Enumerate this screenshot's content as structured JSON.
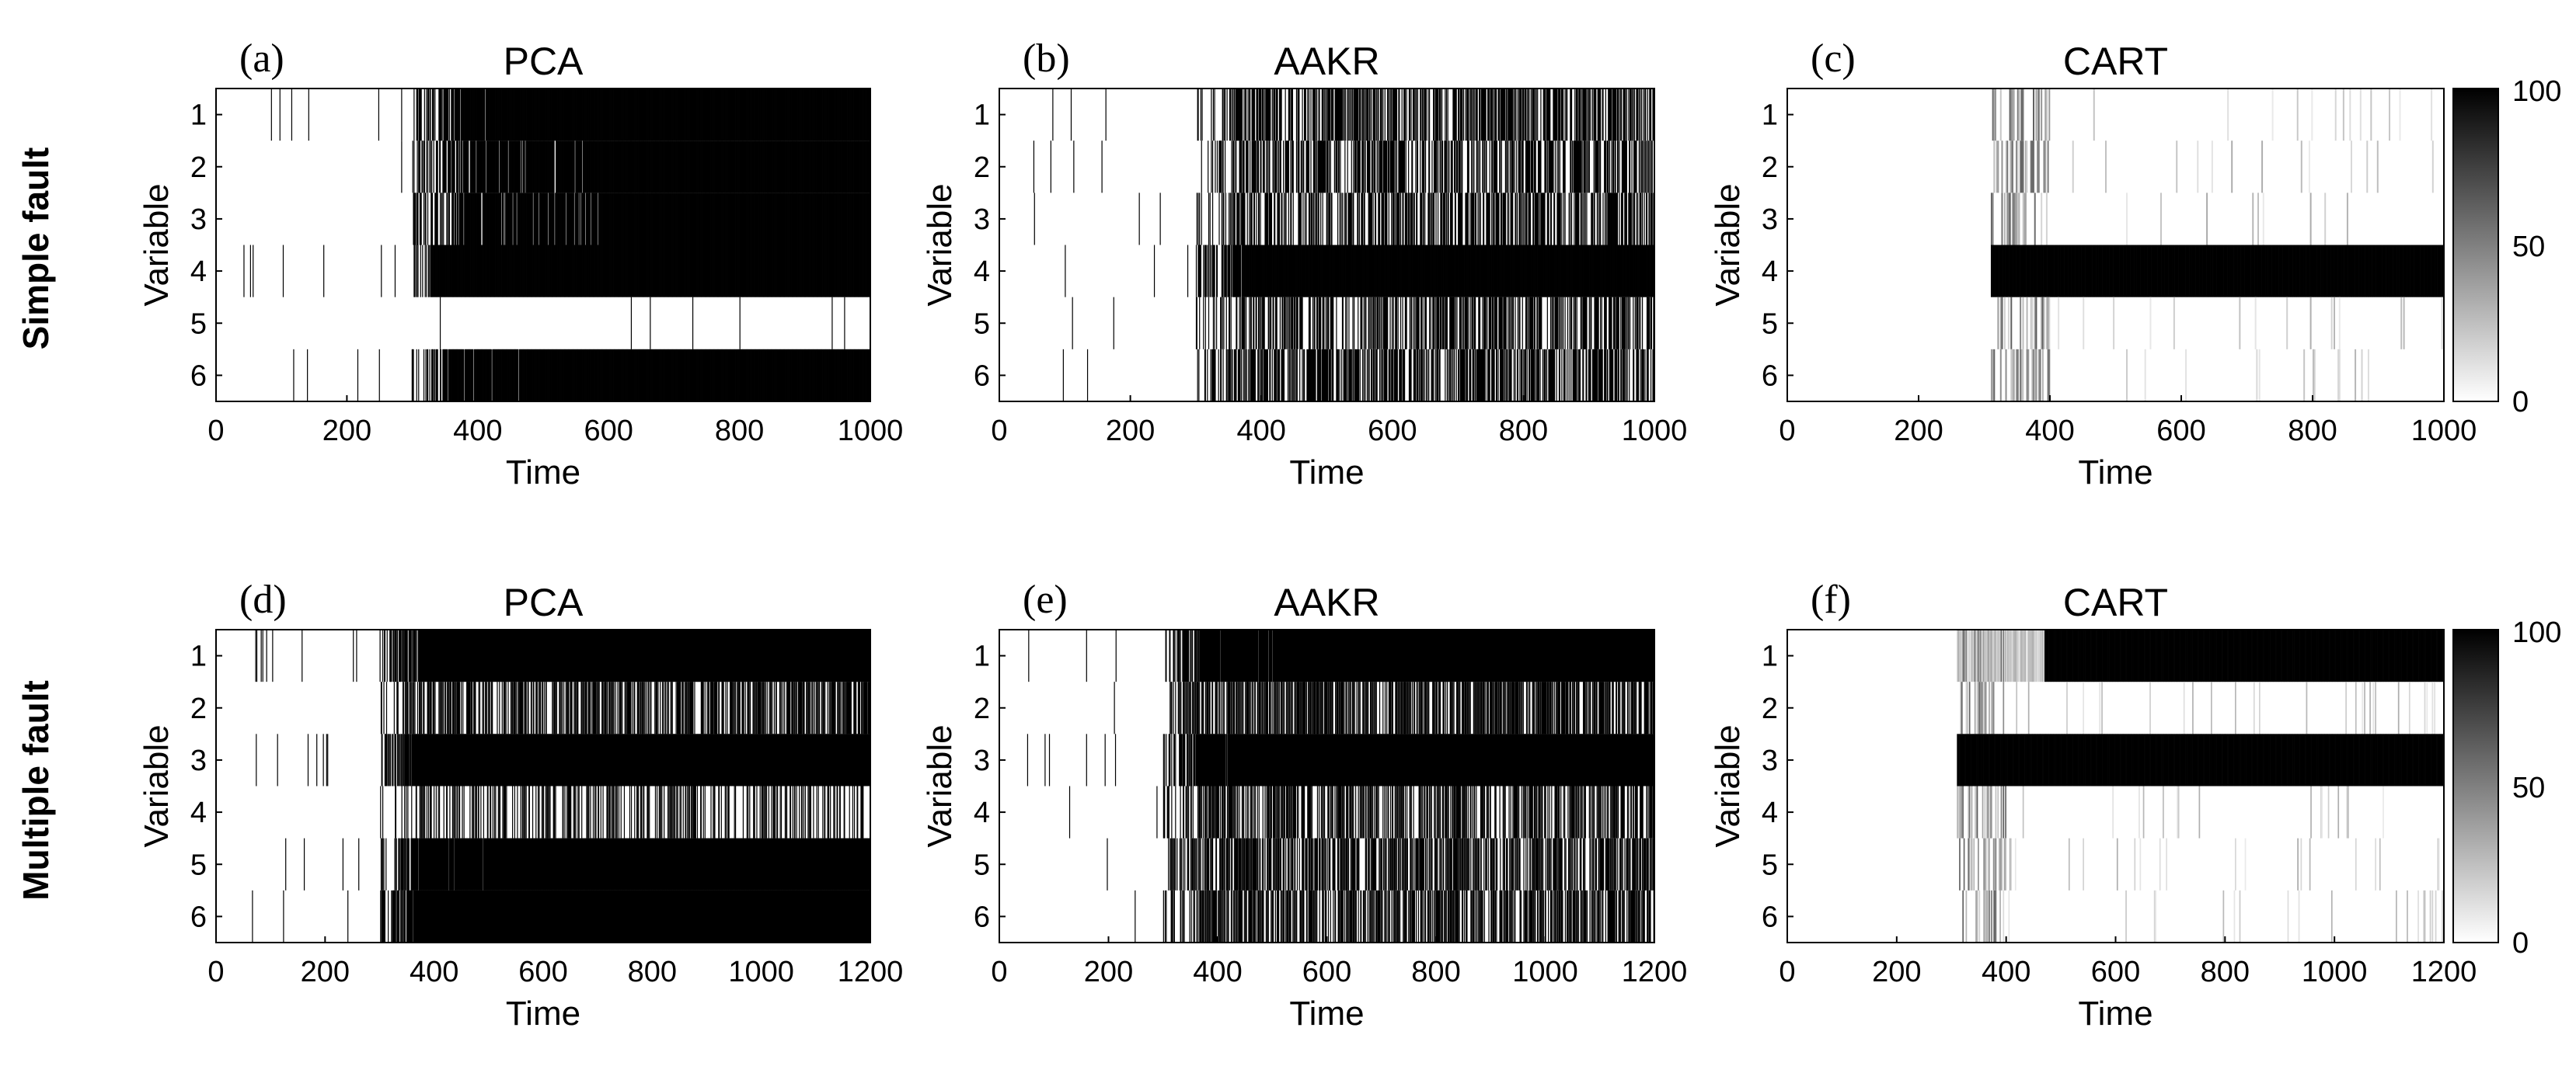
{
  "figure": {
    "row_labels": [
      "Simple fault",
      "Multiple fault"
    ],
    "colorbar": {
      "ticks": [
        0,
        50,
        100
      ],
      "colormap": "white-to-black"
    },
    "colors": {
      "low": "#ffffff",
      "high": "#000000"
    }
  },
  "chart_data": [
    {
      "id": "a",
      "letter": "(a)",
      "title": "PCA",
      "type": "heatmap",
      "xlabel": "Time",
      "ylabel": "Variable",
      "xlim": [
        0,
        1000
      ],
      "xticks": [
        0,
        200,
        400,
        600,
        800,
        1000
      ],
      "yticks": [
        1,
        2,
        3,
        4,
        5,
        6
      ],
      "fault_onset": 300,
      "method": "pca",
      "density": {
        "pre": [
          0.06,
          0.03,
          0.05,
          0.07,
          0.01,
          0.04
        ],
        "post": [
          0.97,
          0.92,
          0.9,
          1.0,
          0.015,
          0.97
        ],
        "solid_after": [
          440,
          560,
          590,
          330,
          null,
          470
        ],
        "solid_value": [
          1,
          1,
          1,
          1,
          0,
          1
        ]
      }
    },
    {
      "id": "b",
      "letter": "(b)",
      "title": "AAKR",
      "type": "heatmap",
      "xlabel": "Time",
      "ylabel": "Variable",
      "xlim": [
        0,
        1000
      ],
      "xticks": [
        0,
        200,
        400,
        600,
        800,
        1000
      ],
      "yticks": [
        1,
        2,
        3,
        4,
        5,
        6
      ],
      "fault_onset": 300,
      "method": "aakr",
      "density": {
        "pre": [
          0.03,
          0.04,
          0.03,
          0.06,
          0.03,
          0.04
        ],
        "post": [
          0.6,
          0.6,
          0.55,
          1.0,
          0.55,
          0.6
        ],
        "solid_after": [
          null,
          null,
          null,
          390,
          null,
          null
        ],
        "solid_value": [
          1,
          1,
          1,
          1,
          1,
          1
        ]
      }
    },
    {
      "id": "c",
      "letter": "(c)",
      "title": "CART",
      "type": "heatmap",
      "xlabel": "Time",
      "ylabel": "Variable",
      "xlim": [
        0,
        1000
      ],
      "xticks": [
        0,
        200,
        400,
        600,
        800,
        1000
      ],
      "yticks": [
        1,
        2,
        3,
        4,
        5,
        6
      ],
      "fault_onset": 310,
      "method": "cart",
      "density": {
        "pre": [
          0,
          0,
          0,
          0,
          0,
          0
        ],
        "post": [
          0.04,
          0.04,
          0.04,
          1.0,
          0.04,
          0.04
        ],
        "solid_after": [
          null,
          null,
          null,
          310,
          null,
          null
        ],
        "solid_value": [
          1,
          1,
          1,
          1,
          1,
          1
        ]
      }
    },
    {
      "id": "d",
      "letter": "(d)",
      "title": "PCA",
      "type": "heatmap",
      "xlabel": "Time",
      "ylabel": "Variable",
      "xlim": [
        0,
        1200
      ],
      "xticks": [
        0,
        200,
        400,
        600,
        800,
        1000,
        1200
      ],
      "yticks": [
        1,
        2,
        3,
        4,
        5,
        6
      ],
      "fault_onset": 300,
      "method": "pca",
      "density": {
        "pre": [
          0.06,
          0.02,
          0.05,
          0.01,
          0.04,
          0.05
        ],
        "post": [
          0.97,
          0.55,
          0.97,
          0.3,
          0.95,
          0.97
        ],
        "solid_after": [
          370,
          null,
          360,
          null,
          500,
          400
        ],
        "solid_value": [
          1,
          1,
          1,
          1,
          1,
          1
        ]
      }
    },
    {
      "id": "e",
      "letter": "(e)",
      "title": "AAKR",
      "type": "heatmap",
      "xlabel": "Time",
      "ylabel": "Variable",
      "xlim": [
        0,
        1200
      ],
      "xticks": [
        0,
        200,
        400,
        600,
        800,
        1000,
        1200
      ],
      "yticks": [
        1,
        2,
        3,
        4,
        5,
        6
      ],
      "fault_onset": 300,
      "method": "aakr",
      "density": {
        "pre": [
          0.05,
          0.03,
          0.04,
          0.02,
          0.01,
          0.03
        ],
        "post": [
          0.95,
          0.55,
          0.97,
          0.5,
          0.55,
          0.55
        ],
        "solid_after": [
          510,
          null,
          470,
          null,
          null,
          null
        ],
        "solid_value": [
          1,
          1,
          1,
          1,
          1,
          1
        ]
      }
    },
    {
      "id": "f",
      "letter": "(f)",
      "title": "CART",
      "type": "heatmap",
      "xlabel": "Time",
      "ylabel": "Variable",
      "xlim": [
        0,
        1200
      ],
      "xticks": [
        0,
        200,
        400,
        600,
        800,
        1000,
        1200
      ],
      "yticks": [
        1,
        2,
        3,
        4,
        5,
        6
      ],
      "fault_onset": 310,
      "method": "cart",
      "density": {
        "pre": [
          0,
          0,
          0,
          0,
          0,
          0
        ],
        "post": [
          1.0,
          0.04,
          1.0,
          0.05,
          0.05,
          0.05
        ],
        "solid_after": [
          470,
          null,
          310,
          null,
          null,
          null
        ],
        "solid_value": [
          1,
          1,
          1,
          1,
          1,
          1
        ]
      }
    }
  ]
}
